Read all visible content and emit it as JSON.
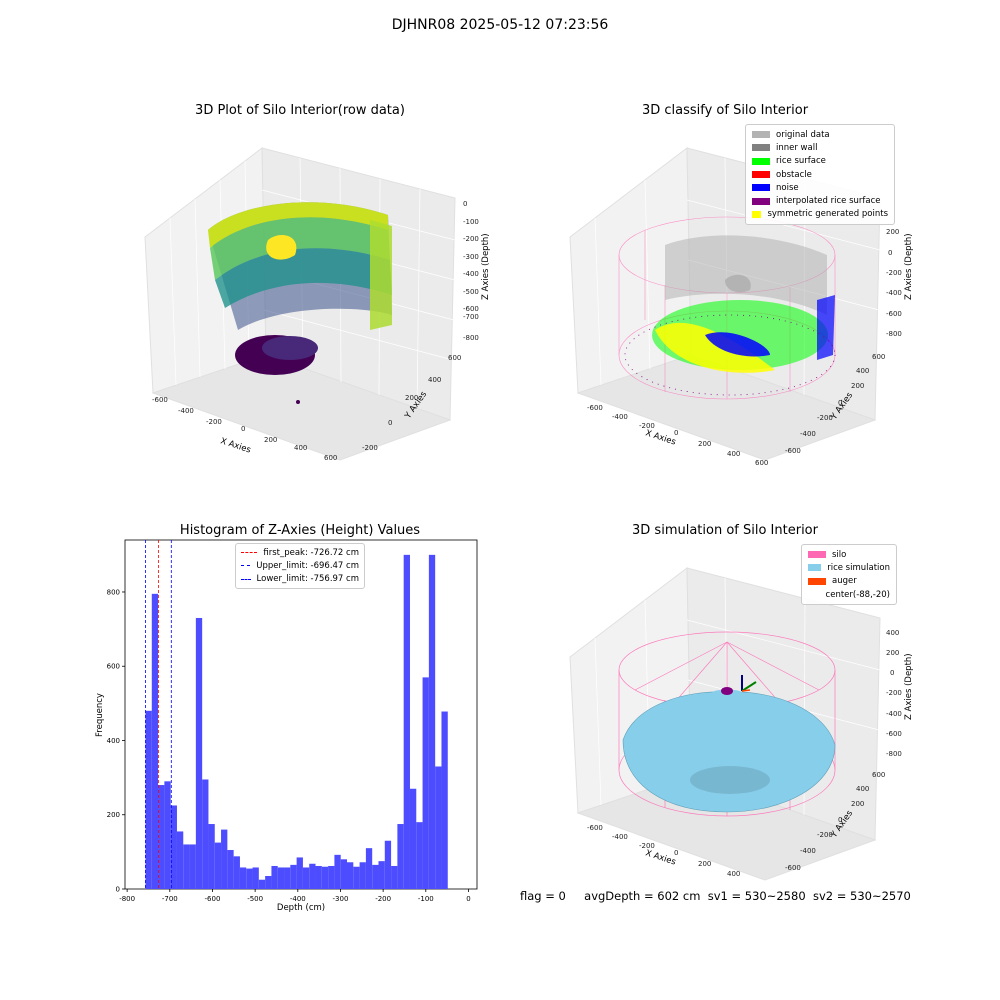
{
  "suptitle": "DJHNR08 2025-05-12 07:23:56",
  "colors": {
    "original": "#b3b3b3",
    "inner_wall": "#808080",
    "rice_surface": "#00ff00",
    "obstacle": "#ff0000",
    "noise": "#0000ff",
    "interpolated": "#800080",
    "symmetric": "#ffff00",
    "silo": "#ff69b4",
    "rice_sim": "#87ceeb",
    "auger": "#ff4500",
    "hist_bar": "#4d4dff",
    "first_peak": "#ff0000",
    "limits": "#0000ff"
  },
  "panels": {
    "raw": {
      "title": "3D Plot of Silo Interior(row data)",
      "xlabel": "X Axies",
      "ylabel": "Y Axies",
      "zlabel": "Z Axies (Depth)",
      "xticks": [
        "-600",
        "-400",
        "-200",
        "0",
        "200",
        "400",
        "600"
      ],
      "yticks": [
        "-200",
        "0",
        "200",
        "400",
        "600"
      ],
      "zticks": [
        "0",
        "-100",
        "-200",
        "-300",
        "-400",
        "-500",
        "-600",
        "-700",
        "-800"
      ]
    },
    "classify": {
      "title": "3D classify of Silo Interior",
      "xlabel": "X Axies",
      "ylabel": "Y Axies",
      "zlabel": "Z Axies (Depth)",
      "xticks": [
        "-600",
        "-400",
        "-200",
        "0",
        "200",
        "400",
        "600"
      ],
      "yticks": [
        "-600",
        "-400",
        "-200",
        "0",
        "200",
        "400",
        "600"
      ],
      "zticks": [
        "200",
        "0",
        "-200",
        "-400",
        "-600",
        "-800"
      ],
      "zticks_hidden_behind_legend": [
        "400"
      ],
      "legend": [
        {
          "label": "original data",
          "color": "#b3b3b3"
        },
        {
          "label": "inner wall",
          "color": "#808080"
        },
        {
          "label": "rice surface",
          "color": "#00ff00"
        },
        {
          "label": "obstacle",
          "color": "#ff0000"
        },
        {
          "label": "noise",
          "color": "#0000ff"
        },
        {
          "label": "interpolated rice surface",
          "color": "#800080"
        },
        {
          "label": "symmetric generated points",
          "color": "#ffff00"
        }
      ]
    },
    "simulation": {
      "title": "3D simulation of Silo Interior",
      "xlabel": "X Axies",
      "ylabel": "Y Axies",
      "zlabel": "Z Axies (Depth)",
      "xticks": [
        "-600",
        "-400",
        "-200",
        "0",
        "200",
        "400"
      ],
      "yticks": [
        "-600",
        "-400",
        "-200",
        "0",
        "200",
        "400",
        "600"
      ],
      "zticks": [
        "400",
        "200",
        "0",
        "-200",
        "-400",
        "-600",
        "-800"
      ],
      "legend": [
        {
          "label": "silo",
          "color": "#ff69b4"
        },
        {
          "label": "rice simulation",
          "color": "#87ceeb"
        },
        {
          "label": "auger",
          "color": "#ff4500"
        },
        {
          "label": "center(-88,-20)",
          "color": ""
        }
      ]
    }
  },
  "footer": {
    "flag": "flag = 0",
    "avg": "avgDepth = 602 cm",
    "sv1": "sv1 = 530~2580",
    "sv2": "sv2 = 530~2570"
  },
  "chart_data": [
    {
      "type": "bar",
      "title": "Histogram of Z-Axies (Height) Values",
      "xlabel": "Depth (cm)",
      "ylabel": "Frequency",
      "xlim": [
        -805,
        20
      ],
      "ylim": [
        0,
        940
      ],
      "xticks": [
        -800,
        -700,
        -600,
        -500,
        -400,
        -300,
        -200,
        -100,
        0
      ],
      "yticks": [
        0,
        200,
        400,
        600,
        800
      ],
      "bin_start": -757,
      "bin_width": 14.76,
      "values": [
        480,
        795,
        280,
        290,
        225,
        155,
        120,
        120,
        730,
        295,
        175,
        125,
        160,
        105,
        88,
        58,
        55,
        58,
        25,
        35,
        62,
        58,
        58,
        65,
        85,
        58,
        68,
        62,
        60,
        62,
        92,
        80,
        72,
        60,
        72,
        110,
        65,
        75,
        130,
        62,
        175,
        900,
        270,
        180,
        570,
        900,
        330,
        478
      ],
      "vlines": [
        {
          "label": "first_peak: -726.72 cm",
          "x": -726.72,
          "color": "#ff0000"
        },
        {
          "label": "Upper_limit: -696.47 cm",
          "x": -696.47,
          "color": "#0000ff"
        },
        {
          "label": "Lower_limit: -756.97 cm",
          "x": -756.97,
          "color": "#0000ff"
        }
      ]
    }
  ]
}
